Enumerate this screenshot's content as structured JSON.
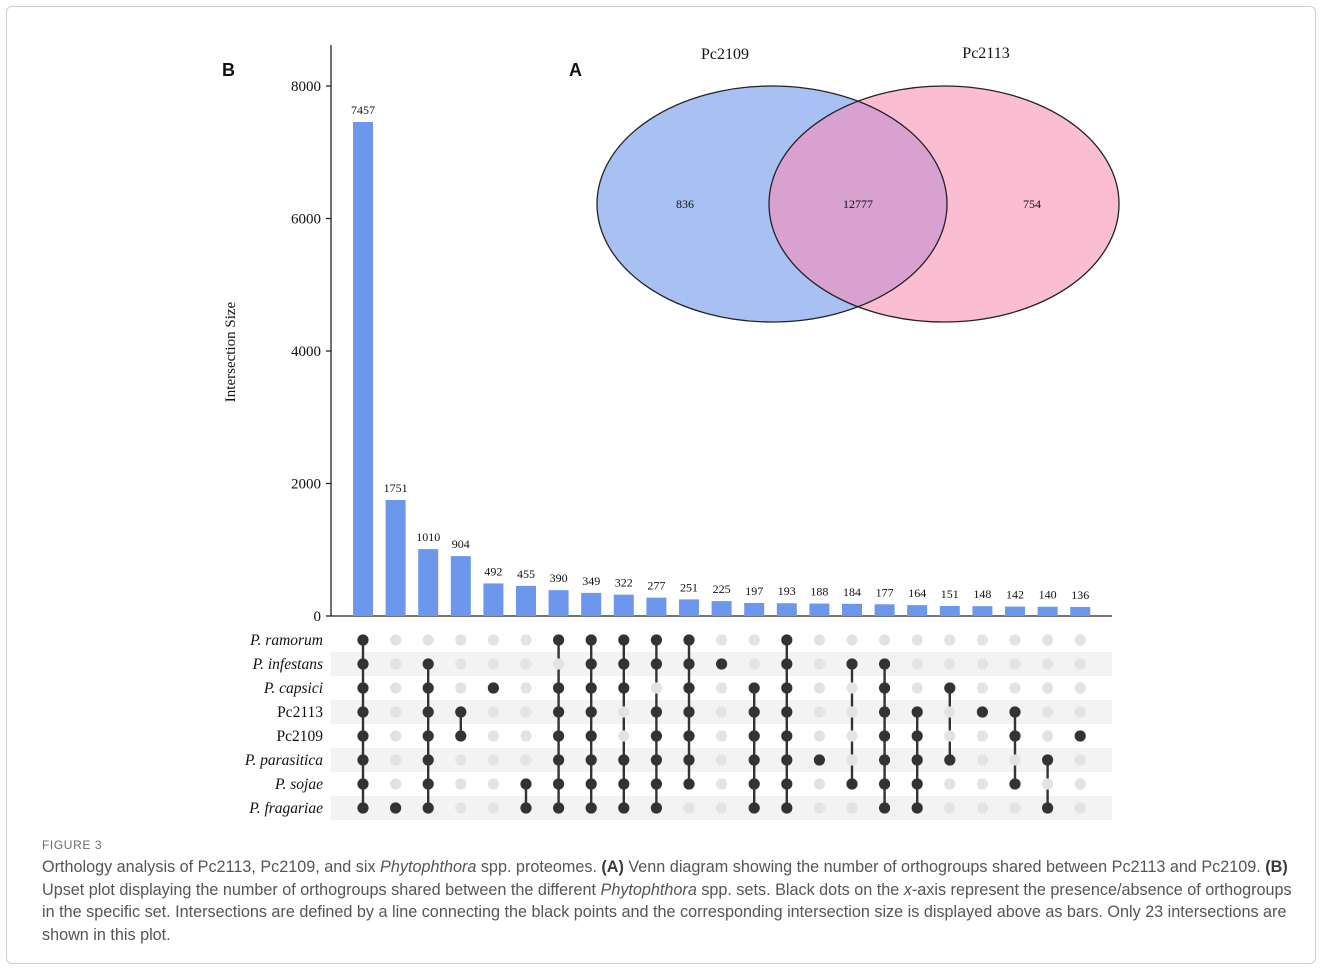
{
  "chart_data": [
    {
      "type": "bar",
      "panel_label": "B",
      "ylabel": "Intersection Size",
      "ylim": [
        0,
        8000
      ],
      "yticks": [
        "0",
        "2000",
        "4000",
        "6000",
        "8000"
      ],
      "values": [
        7457,
        1751,
        1010,
        904,
        492,
        455,
        390,
        349,
        322,
        277,
        251,
        225,
        197,
        193,
        188,
        184,
        177,
        164,
        151,
        148,
        142,
        140,
        136
      ],
      "bar_color": "#6d97ec",
      "sets": [
        {
          "name": "P. ramorum",
          "italic": true
        },
        {
          "name": "P. infestans",
          "italic": true
        },
        {
          "name": "P. capsici",
          "italic": true
        },
        {
          "name": "Pc2113",
          "italic": false
        },
        {
          "name": "Pc2109",
          "italic": false
        },
        {
          "name": "P. parasitica",
          "italic": true
        },
        {
          "name": "P. sojae",
          "italic": true
        },
        {
          "name": "P. fragariae",
          "italic": true
        }
      ],
      "matrix": [
        [
          0,
          1,
          2,
          3,
          4,
          5,
          6,
          7
        ],
        [
          7
        ],
        [
          1,
          2,
          3,
          4,
          5,
          6,
          7
        ],
        [
          3,
          4
        ],
        [
          2
        ],
        [
          6,
          7
        ],
        [
          0,
          2,
          3,
          4,
          5,
          6,
          7
        ],
        [
          0,
          1,
          2,
          3,
          4,
          5,
          6,
          7
        ],
        [
          0,
          1,
          2,
          5,
          6,
          7
        ],
        [
          0,
          1,
          3,
          4,
          5,
          6,
          7
        ],
        [
          0,
          1,
          2,
          3,
          4,
          5,
          6
        ],
        [
          1
        ],
        [
          2,
          3,
          4,
          5,
          6,
          7
        ],
        [
          0,
          1,
          2,
          3,
          4,
          5,
          6,
          7
        ],
        [
          5
        ],
        [
          1,
          6
        ],
        [
          1,
          2,
          3,
          4,
          5,
          6,
          7
        ],
        [
          3,
          4,
          5,
          6,
          7
        ],
        [
          2,
          5
        ],
        [
          3
        ],
        [
          3,
          4,
          6
        ],
        [
          5,
          7
        ],
        [
          4
        ]
      ],
      "dot_active": "#333333",
      "dot_inactive": "#e3e3e3"
    },
    {
      "type": "venn",
      "panel_label": "A",
      "sets": [
        {
          "name": "Pc2109",
          "only": "836",
          "color": "#a9c1f2"
        },
        {
          "name": "Pc2113",
          "only": "754",
          "color": "#fbbdd2"
        }
      ],
      "intersection": "12777",
      "overlap_color": "#d9a1cf"
    }
  ],
  "caption": {
    "label": "FIGURE 3",
    "p1_a": "Orthology analysis of Pc2113, Pc2109, and six ",
    "p1_i": "Phytophthora",
    "p1_b": " spp. proteomes. ",
    "a_label": "(A)",
    "p2": " Venn diagram showing the number of orthogroups shared between Pc2113 and Pc2109. ",
    "b_label": "(B)",
    "p3_a": " Upset plot displaying the number of orthogroups shared between the different ",
    "p3_i": "Phytophthora",
    "p3_b": " spp. sets. Black dots on the ",
    "p4_i": "x",
    "p4_b": "-axis represent the presence/absence of orthogroups in the specific set. Intersections are defined by a line connecting the black points and the corresponding intersection size is displayed above as bars. Only 23 intersections are shown in this plot."
  }
}
